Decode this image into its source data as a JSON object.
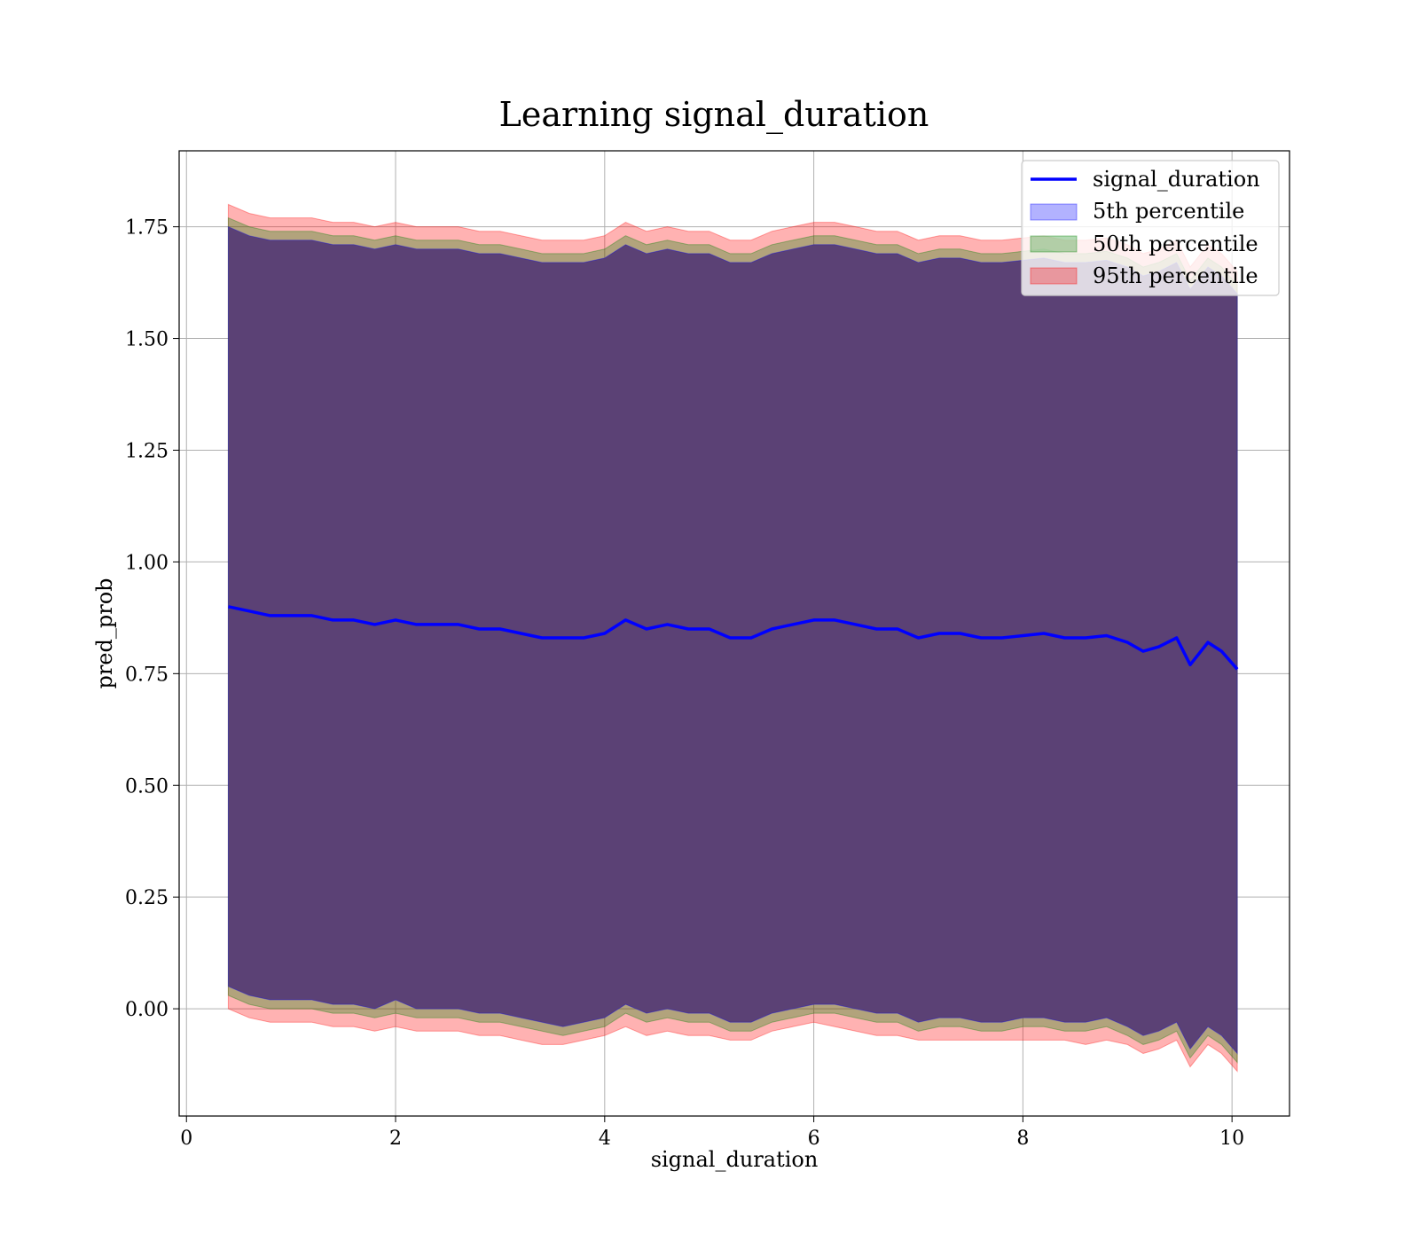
{
  "chart_data": {
    "type": "line",
    "title": "Learning signal_duration",
    "xlabel": "signal_duration",
    "ylabel": "pred_prob",
    "xlim": [
      -0.07,
      10.55
    ],
    "ylim": [
      -0.24,
      1.92
    ],
    "xticks": [
      0,
      2,
      4,
      6,
      8,
      10
    ],
    "xtick_labels": [
      "0",
      "2",
      "4",
      "6",
      "8",
      "10"
    ],
    "yticks": [
      0.0,
      0.25,
      0.5,
      0.75,
      1.0,
      1.25,
      1.5,
      1.75
    ],
    "ytick_labels": [
      "0.00",
      "0.25",
      "0.50",
      "0.75",
      "1.00",
      "1.25",
      "1.50",
      "1.75"
    ],
    "grid": true,
    "legend": "upper-right",
    "colors": {
      "line": "#0000ff",
      "p5": "#0000ff",
      "p50": "#008000",
      "p95": "#ff0000",
      "fill_overlap": "#a07078"
    },
    "x": [
      0.4,
      0.6,
      0.8,
      1.0,
      1.2,
      1.4,
      1.6,
      1.8,
      2.0,
      2.2,
      2.4,
      2.6,
      2.8,
      3.0,
      3.2,
      3.4,
      3.6,
      3.8,
      4.0,
      4.2,
      4.4,
      4.6,
      4.8,
      5.0,
      5.2,
      5.4,
      5.6,
      5.8,
      6.0,
      6.2,
      6.4,
      6.6,
      6.8,
      7.0,
      7.2,
      7.4,
      7.6,
      7.8,
      8.0,
      8.2,
      8.4,
      8.6,
      8.8,
      9.0,
      9.15,
      9.3,
      9.47,
      9.6,
      9.77,
      9.9,
      10.05
    ],
    "series": [
      {
        "name": "signal_duration",
        "role": "line",
        "values": [
          0.9,
          0.89,
          0.88,
          0.88,
          0.88,
          0.87,
          0.87,
          0.86,
          0.87,
          0.86,
          0.86,
          0.86,
          0.85,
          0.85,
          0.84,
          0.83,
          0.83,
          0.83,
          0.84,
          0.87,
          0.85,
          0.86,
          0.85,
          0.85,
          0.83,
          0.83,
          0.85,
          0.86,
          0.87,
          0.87,
          0.86,
          0.85,
          0.85,
          0.83,
          0.84,
          0.84,
          0.83,
          0.83,
          0.835,
          0.84,
          0.83,
          0.83,
          0.835,
          0.82,
          0.8,
          0.81,
          0.83,
          0.77,
          0.82,
          0.8,
          0.76
        ]
      },
      {
        "name": "5th percentile",
        "role": "band",
        "lower": [
          0.05,
          0.03,
          0.02,
          0.02,
          0.02,
          0.01,
          0.01,
          0.0,
          0.02,
          0.0,
          0.0,
          0.0,
          -0.01,
          -0.01,
          -0.02,
          -0.03,
          -0.04,
          -0.03,
          -0.02,
          0.01,
          -0.01,
          0.0,
          -0.01,
          -0.01,
          -0.03,
          -0.03,
          -0.01,
          0.0,
          0.01,
          0.01,
          0.0,
          -0.01,
          -0.01,
          -0.03,
          -0.02,
          -0.02,
          -0.03,
          -0.03,
          -0.02,
          -0.02,
          -0.03,
          -0.03,
          -0.02,
          -0.04,
          -0.06,
          -0.05,
          -0.03,
          -0.09,
          -0.04,
          -0.06,
          -0.1
        ],
        "upper": [
          1.75,
          1.73,
          1.72,
          1.72,
          1.72,
          1.71,
          1.71,
          1.7,
          1.71,
          1.7,
          1.7,
          1.7,
          1.69,
          1.69,
          1.68,
          1.67,
          1.67,
          1.67,
          1.68,
          1.71,
          1.69,
          1.7,
          1.69,
          1.69,
          1.67,
          1.67,
          1.69,
          1.7,
          1.71,
          1.71,
          1.7,
          1.69,
          1.69,
          1.67,
          1.68,
          1.68,
          1.67,
          1.67,
          1.675,
          1.68,
          1.67,
          1.67,
          1.675,
          1.66,
          1.64,
          1.65,
          1.67,
          1.61,
          1.66,
          1.64,
          1.6
        ]
      },
      {
        "name": "50th percentile",
        "role": "band",
        "lower": [
          0.03,
          0.01,
          0.0,
          0.0,
          0.0,
          -0.01,
          -0.01,
          -0.02,
          -0.01,
          -0.02,
          -0.02,
          -0.02,
          -0.03,
          -0.03,
          -0.04,
          -0.05,
          -0.06,
          -0.05,
          -0.04,
          -0.01,
          -0.03,
          -0.02,
          -0.03,
          -0.03,
          -0.05,
          -0.05,
          -0.03,
          -0.02,
          -0.01,
          -0.01,
          -0.02,
          -0.03,
          -0.03,
          -0.05,
          -0.04,
          -0.04,
          -0.05,
          -0.05,
          -0.04,
          -0.04,
          -0.05,
          -0.05,
          -0.04,
          -0.06,
          -0.08,
          -0.07,
          -0.05,
          -0.11,
          -0.06,
          -0.08,
          -0.12
        ],
        "upper": [
          1.77,
          1.75,
          1.74,
          1.74,
          1.74,
          1.73,
          1.73,
          1.72,
          1.73,
          1.72,
          1.72,
          1.72,
          1.71,
          1.71,
          1.7,
          1.69,
          1.69,
          1.69,
          1.7,
          1.73,
          1.71,
          1.72,
          1.71,
          1.71,
          1.69,
          1.69,
          1.71,
          1.72,
          1.73,
          1.73,
          1.72,
          1.71,
          1.71,
          1.69,
          1.7,
          1.7,
          1.69,
          1.69,
          1.695,
          1.7,
          1.69,
          1.69,
          1.695,
          1.68,
          1.66,
          1.67,
          1.69,
          1.63,
          1.68,
          1.66,
          1.62
        ]
      },
      {
        "name": "95th percentile",
        "role": "band",
        "lower": [
          0.0,
          -0.02,
          -0.03,
          -0.03,
          -0.03,
          -0.04,
          -0.04,
          -0.05,
          -0.04,
          -0.05,
          -0.05,
          -0.05,
          -0.06,
          -0.06,
          -0.07,
          -0.08,
          -0.08,
          -0.07,
          -0.06,
          -0.04,
          -0.06,
          -0.05,
          -0.06,
          -0.06,
          -0.07,
          -0.07,
          -0.05,
          -0.04,
          -0.03,
          -0.04,
          -0.05,
          -0.06,
          -0.06,
          -0.07,
          -0.07,
          -0.07,
          -0.07,
          -0.07,
          -0.07,
          -0.07,
          -0.07,
          -0.08,
          -0.07,
          -0.08,
          -0.1,
          -0.09,
          -0.07,
          -0.13,
          -0.08,
          -0.1,
          -0.14
        ],
        "upper": [
          1.8,
          1.78,
          1.77,
          1.77,
          1.77,
          1.76,
          1.76,
          1.75,
          1.76,
          1.75,
          1.75,
          1.75,
          1.74,
          1.74,
          1.73,
          1.72,
          1.72,
          1.72,
          1.73,
          1.76,
          1.74,
          1.75,
          1.74,
          1.74,
          1.72,
          1.72,
          1.74,
          1.75,
          1.76,
          1.76,
          1.75,
          1.74,
          1.74,
          1.72,
          1.73,
          1.73,
          1.72,
          1.72,
          1.725,
          1.73,
          1.72,
          1.72,
          1.725,
          1.71,
          1.69,
          1.7,
          1.72,
          1.66,
          1.71,
          1.69,
          1.65
        ]
      }
    ]
  }
}
